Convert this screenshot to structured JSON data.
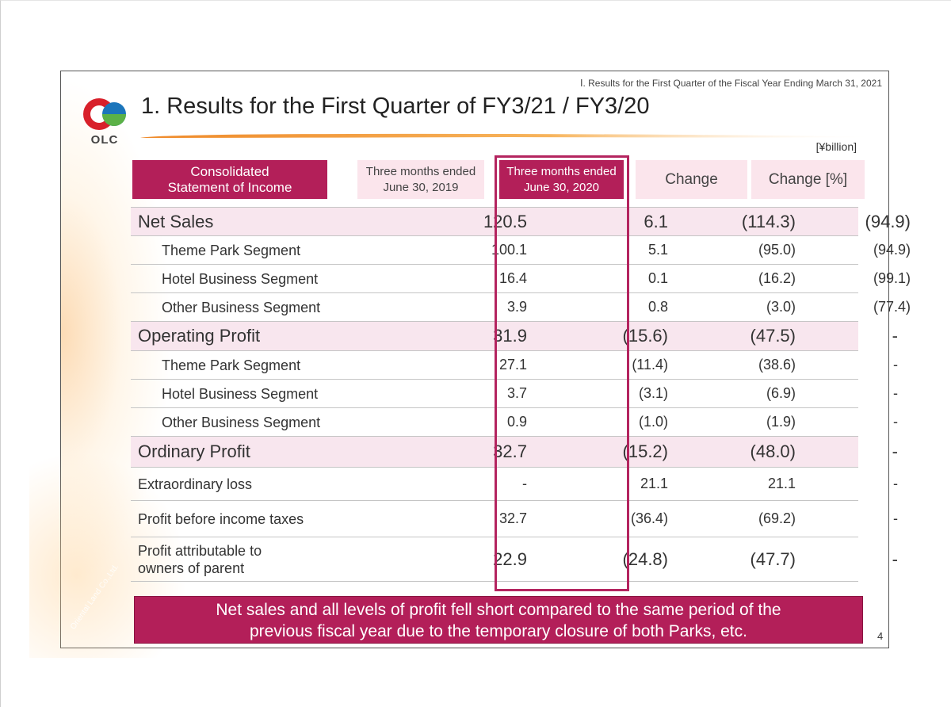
{
  "header": {
    "section_note": "Ⅰ. Results for the First Quarter of the Fiscal Year Ending March 31, 2021",
    "title": "1. Results for the First Quarter of FY3/21 / FY3/20",
    "logo_text": "OLC",
    "watermark": "Oriental Land Co.,Ltd."
  },
  "unit_label": "[¥billion]",
  "table": {
    "headers": {
      "item": "Consolidated\nStatement of Income",
      "prior": "Three months ended\nJune 30, 2019",
      "current": "Three months ended\nJune 30, 2020",
      "change": "Change",
      "change_pct": "Change [%]"
    },
    "rows": [
      {
        "label": "Net Sales",
        "prior": "120.5",
        "current": "6.1",
        "change": "(114.3)",
        "change_pct": "(94.9)"
      },
      {
        "label": "Theme Park Segment",
        "prior": "100.1",
        "current": "5.1",
        "change": "(95.0)",
        "change_pct": "(94.9)"
      },
      {
        "label": "Hotel Business Segment",
        "prior": "16.4",
        "current": "0.1",
        "change": "(16.2)",
        "change_pct": "(99.1)"
      },
      {
        "label": "Other Business Segment",
        "prior": "3.9",
        "current": "0.8",
        "change": "(3.0)",
        "change_pct": "(77.4)"
      },
      {
        "label": "Operating Profit",
        "prior": "31.9",
        "current": "(15.6)",
        "change": "(47.5)",
        "change_pct": "-"
      },
      {
        "label": "Theme Park Segment",
        "prior": "27.1",
        "current": "(11.4)",
        "change": "(38.6)",
        "change_pct": "-"
      },
      {
        "label": "Hotel Business Segment",
        "prior": "3.7",
        "current": "(3.1)",
        "change": "(6.9)",
        "change_pct": "-"
      },
      {
        "label": "Other Business Segment",
        "prior": "0.9",
        "current": "(1.0)",
        "change": "(1.9)",
        "change_pct": "-"
      },
      {
        "label": "Ordinary Profit",
        "prior": "32.7",
        "current": "(15.2)",
        "change": "(48.0)",
        "change_pct": "-"
      },
      {
        "label": "Extraordinary loss",
        "prior": "-",
        "current": "21.1",
        "change": "21.1",
        "change_pct": "-"
      },
      {
        "label": "Profit before income taxes",
        "prior": "32.7",
        "current": "(36.4)",
        "change": "(69.2)",
        "change_pct": "-"
      },
      {
        "label": "Profit attributable to\nowners of parent",
        "prior": "22.9",
        "current": "(24.8)",
        "change": "(47.7)",
        "change_pct": "-"
      }
    ]
  },
  "summary": "Net sales and all levels of profit fell short compared to the same period of the\nprevious fiscal year due to the temporary closure of both Parks, etc.",
  "page_number": "4",
  "colors": {
    "accent": "#b31f59",
    "header_light": "#fbe5ec",
    "major_row": "#f8e6ee",
    "logo_red": "#d8202a",
    "logo_blue": "#1b75bb",
    "logo_green": "#5bb146"
  }
}
